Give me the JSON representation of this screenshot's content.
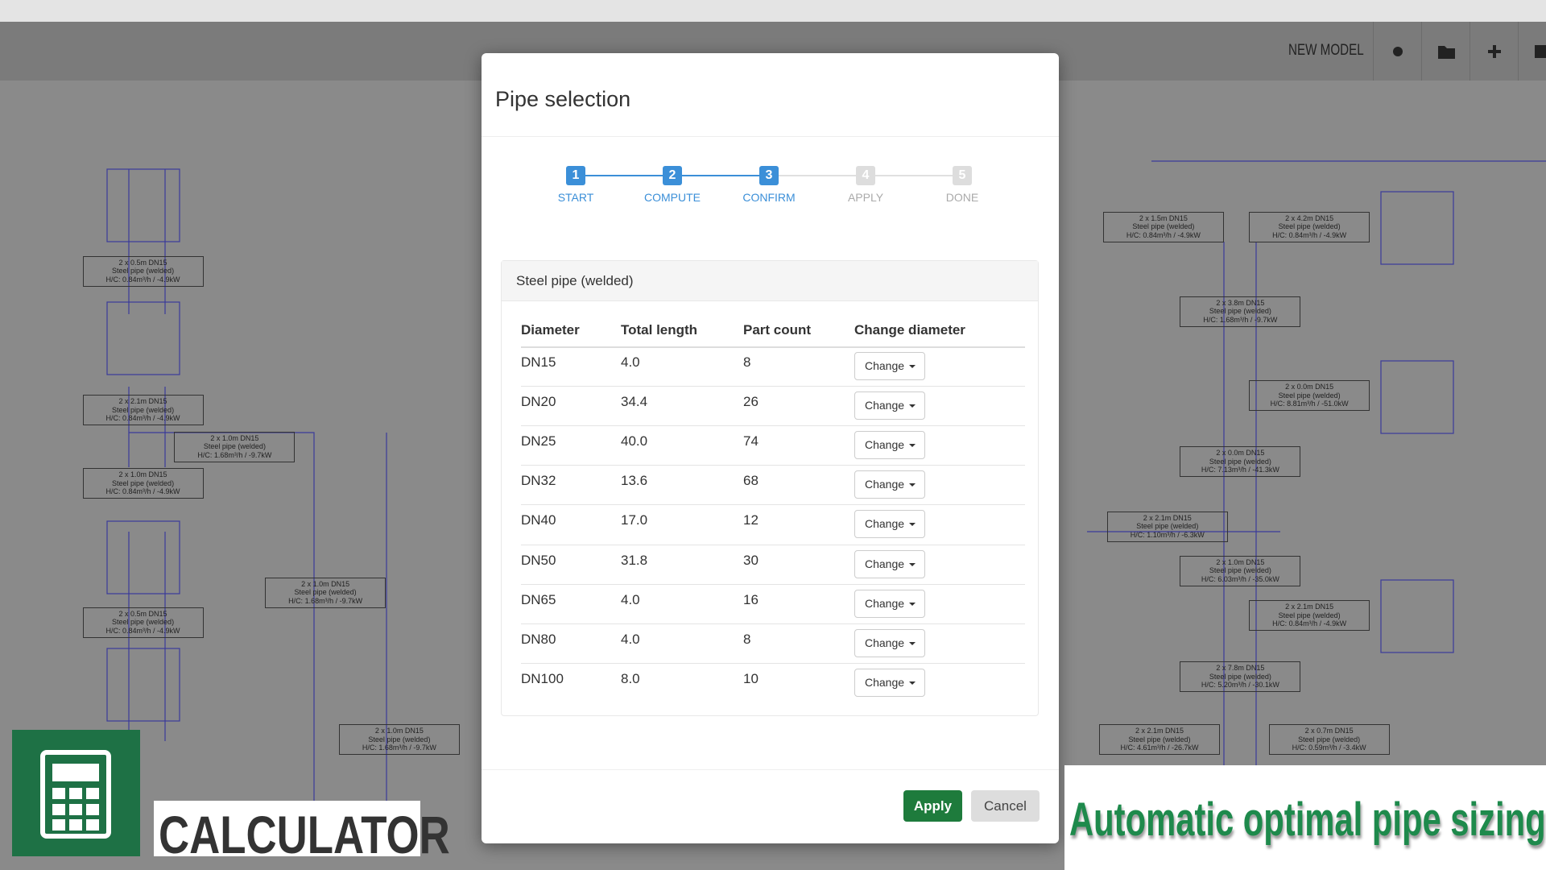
{
  "toolbar": {
    "title": "NEW MODEL"
  },
  "dialog": {
    "title": "Pipe selection",
    "steps": [
      {
        "number": 1,
        "label": "START"
      },
      {
        "number": 2,
        "label": "COMPUTE"
      },
      {
        "number": 3,
        "label": "CONFIRM"
      },
      {
        "number": 4,
        "label": "APPLY"
      },
      {
        "number": 5,
        "label": "DONE"
      }
    ],
    "panel_title": "Steel pipe (welded)",
    "table": {
      "columns": [
        "Diameter",
        "Total length",
        "Part count",
        "Change diameter"
      ],
      "rows": [
        [
          "DN15",
          "4.0",
          "8",
          "Change"
        ],
        [
          "DN20",
          "34.4",
          "26",
          "Change"
        ],
        [
          "DN25",
          "40.0",
          "74",
          "Change"
        ],
        [
          "DN32",
          "13.6",
          "68",
          "Change"
        ],
        [
          "DN40",
          "17.0",
          "12",
          "Change"
        ],
        [
          "DN50",
          "31.8",
          "30",
          "Change"
        ],
        [
          "DN65",
          "4.0",
          "16",
          "Change"
        ],
        [
          "DN80",
          "4.0",
          "8",
          "Change"
        ],
        [
          "DN100",
          "8.0",
          "10",
          "Change"
        ]
      ]
    },
    "buttons": {
      "apply": "Apply",
      "cancel": "Cancel"
    }
  },
  "diagram": {
    "labels": [
      {
        "lines": [
          "2 x 0.5m DN15",
          "Steel pipe (welded)",
          "H/C: 0.84m³/h / -4.9kW"
        ]
      },
      {
        "lines": [
          "2 x 2.1m DN15",
          "Steel pipe (welded)",
          "H/C: 0.84m³/h / -4.9kW"
        ]
      },
      {
        "lines": [
          "2 x 1.0m DN15",
          "Steel pipe (welded)",
          "H/C: 1.68m³/h / -9.7kW"
        ]
      },
      {
        "lines": [
          "2 x 1.0m DN15",
          "Steel pipe (welded)",
          "H/C: 0.84m³/h / -4.9kW"
        ]
      },
      {
        "lines": [
          "2 x 0.5m DN15",
          "Steel pipe (welded)",
          "H/C: 0.84m³/h / -4.9kW"
        ]
      },
      {
        "lines": [
          "2 x 1.0m DN15",
          "Steel pipe (welded)",
          "H/C: 1.68m³/h / -9.7kW"
        ]
      },
      {
        "lines": [
          "2 x 1.0m DN15",
          "Steel pipe (welded)",
          "H/C: 1.68m³/h / -9.7kW"
        ]
      },
      {
        "lines": [
          "2 x 1.5m DN15",
          "Steel pipe (welded)",
          "H/C: 0.84m³/h / -4.9kW"
        ]
      },
      {
        "lines": [
          "2 x 4.2m DN15",
          "Steel pipe (welded)",
          "H/C: 0.84m³/h / -4.9kW"
        ]
      },
      {
        "lines": [
          "2 x 3.8m DN15",
          "Steel pipe (welded)",
          "H/C: 1.68m³/h / -9.7kW"
        ]
      },
      {
        "lines": [
          "2 x 0.0m DN15",
          "Steel pipe (welded)",
          "H/C: 8.81m³/h / -51.0kW"
        ]
      },
      {
        "lines": [
          "2 x 0.0m DN15",
          "Steel pipe (welded)",
          "H/C: 7.13m³/h / -41.3kW"
        ]
      },
      {
        "lines": [
          "2 x 2.1m DN15",
          "Steel pipe (welded)",
          "H/C: 1.10m³/h / -6.3kW"
        ]
      },
      {
        "lines": [
          "2 x 1.0m DN15",
          "Steel pipe (welded)",
          "H/C: 6.03m³/h / -35.0kW"
        ]
      },
      {
        "lines": [
          "2 x 2.1m DN15",
          "Steel pipe (welded)",
          "H/C: 0.84m³/h / -4.9kW"
        ]
      },
      {
        "lines": [
          "2 x 7.8m DN15",
          "Steel pipe (welded)",
          "H/C: 5.20m³/h / -30.1kW"
        ]
      },
      {
        "lines": [
          "2 x 2.1m DN15",
          "Steel pipe (welded)",
          "H/C: 4.61m³/h / -26.7kW"
        ]
      },
      {
        "lines": [
          "2 x 0.7m DN15",
          "Steel pipe (welded)",
          "H/C: 0.59m³/h / -3.4kW"
        ]
      }
    ]
  },
  "badge": {
    "label": "CALCULATOR"
  },
  "caption": "Automatic optimal pipe sizing"
}
